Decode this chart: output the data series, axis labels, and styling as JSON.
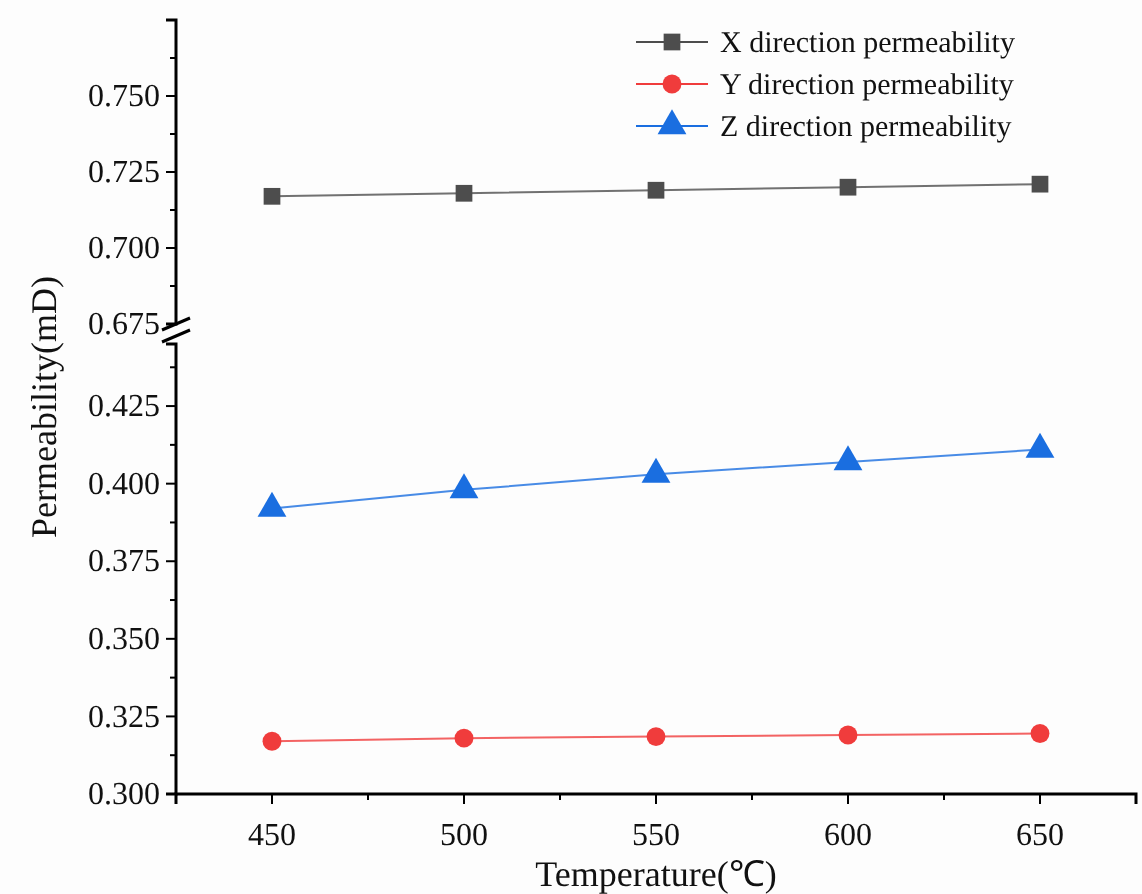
{
  "chart_data": [
    {
      "type": "line",
      "x": [
        450,
        500,
        550,
        600,
        650
      ],
      "ylim": [
        0.675,
        0.775
      ],
      "yticks": [
        {
          "value": 0.675,
          "label": "0.675"
        },
        {
          "value": 0.7,
          "label": "0.700"
        },
        {
          "value": 0.725,
          "label": "0.725"
        },
        {
          "value": 0.75,
          "label": "0.750"
        }
      ],
      "tick_labels": "y",
      "legend": "top right",
      "series": [
        {
          "name": "X direction permeability",
          "color": "#4d4d4d",
          "marker": "square",
          "values": [
            0.717,
            0.718,
            0.719,
            0.72,
            0.721
          ]
        }
      ]
    },
    {
      "type": "line",
      "x": [
        450,
        500,
        550,
        600,
        650
      ],
      "xlim": [
        425,
        675
      ],
      "xticks": [
        450,
        500,
        550,
        600,
        650
      ],
      "ylim": [
        0.3,
        0.445
      ],
      "yticks": [
        {
          "value": 0.3,
          "label": "0.300"
        },
        {
          "value": 0.325,
          "label": "0.325"
        },
        {
          "value": 0.35,
          "label": "0.350"
        },
        {
          "value": 0.375,
          "label": "0.375"
        },
        {
          "value": 0.4,
          "label": "0.400"
        },
        {
          "value": 0.425,
          "label": "0.425"
        }
      ],
      "xlabel": "Temperature(℃)",
      "ylabel": "Permeability(mD)",
      "legend": "top right",
      "series": [
        {
          "name": "Y direction permeability",
          "color": "#f03c3c",
          "marker": "circle",
          "values": [
            0.317,
            0.318,
            0.3185,
            0.319,
            0.3195
          ]
        },
        {
          "name": "Z direction permeability",
          "color": "#1a6ee0",
          "marker": "triangle",
          "values": [
            0.392,
            0.398,
            0.403,
            0.407,
            0.411
          ]
        }
      ]
    }
  ]
}
